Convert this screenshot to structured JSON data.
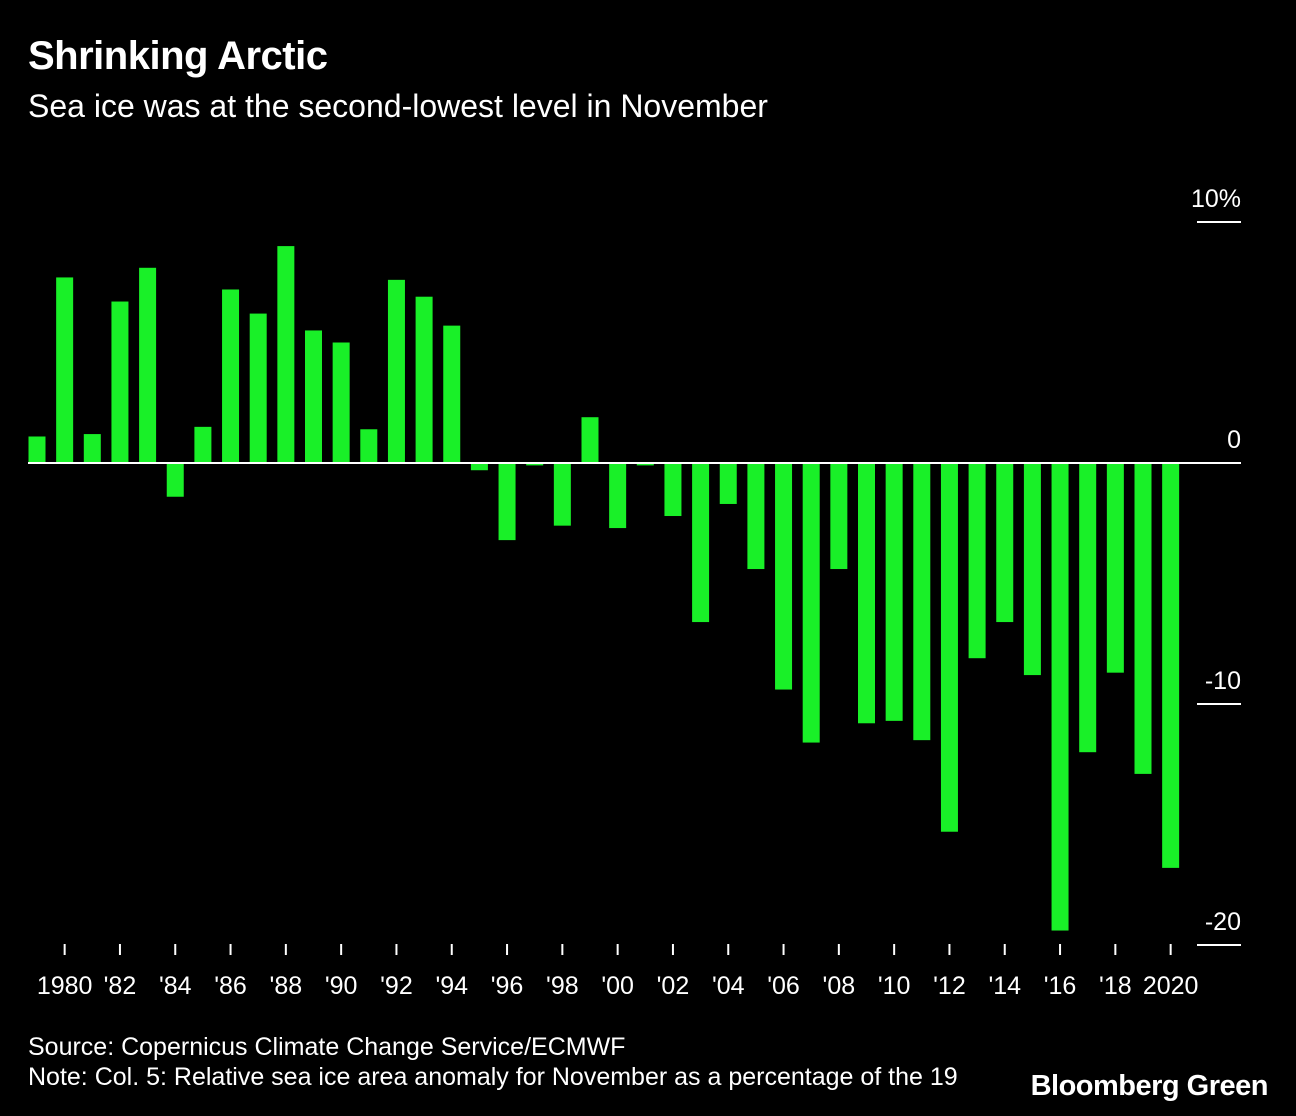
{
  "header": {
    "title": "Shrinking Arctic",
    "subtitle": "Sea ice was at the second-lowest level in November"
  },
  "footer": {
    "source": "Source: Copernicus Climate Change Service/ECMWF",
    "note": "Note: Col. 5: Relative sea ice area anomaly for November as a percentage of the 19",
    "brand": "Bloomberg Green"
  },
  "colors": {
    "background": "#000000",
    "bar": "#19f028",
    "text": "#ffffff",
    "axis": "#ffffff"
  },
  "chart_data": {
    "type": "bar",
    "title": "Shrinking Arctic",
    "subtitle": "Sea ice was at the second-lowest level in November",
    "xlabel": "",
    "ylabel": "",
    "ylim": [
      -20,
      10
    ],
    "y_ticks": [
      {
        "value": 10,
        "label": "10%"
      },
      {
        "value": 0,
        "label": "0"
      },
      {
        "value": -10,
        "label": "-10"
      },
      {
        "value": -20,
        "label": "-20"
      }
    ],
    "categories": [
      1979,
      1980,
      1981,
      1982,
      1983,
      1984,
      1985,
      1986,
      1987,
      1988,
      1989,
      1990,
      1991,
      1992,
      1993,
      1994,
      1995,
      1996,
      1997,
      1998,
      1999,
      2000,
      2001,
      2002,
      2003,
      2004,
      2005,
      2006,
      2007,
      2008,
      2009,
      2010,
      2011,
      2012,
      2013,
      2014,
      2015,
      2016,
      2017,
      2018,
      2019,
      2020
    ],
    "values": [
      1.1,
      7.7,
      1.2,
      6.7,
      8.1,
      -1.4,
      1.5,
      7.2,
      6.2,
      9.0,
      5.5,
      5.0,
      1.4,
      7.6,
      6.9,
      5.7,
      -0.3,
      -3.2,
      -0.1,
      -2.6,
      1.9,
      -2.7,
      -0.1,
      -2.2,
      -6.6,
      -1.7,
      -4.4,
      -9.4,
      -11.6,
      -4.4,
      -10.8,
      -10.7,
      -11.5,
      -15.3,
      -8.1,
      -6.6,
      -8.8,
      -19.4,
      -12.0,
      -8.7,
      -12.9,
      -16.8
    ],
    "x_ticks": [
      {
        "year": 1980,
        "label": "1980"
      },
      {
        "year": 1982,
        "label": "'82"
      },
      {
        "year": 1984,
        "label": "'84"
      },
      {
        "year": 1986,
        "label": "'86"
      },
      {
        "year": 1988,
        "label": "'88"
      },
      {
        "year": 1990,
        "label": "'90"
      },
      {
        "year": 1992,
        "label": "'92"
      },
      {
        "year": 1994,
        "label": "'94"
      },
      {
        "year": 1996,
        "label": "'96"
      },
      {
        "year": 1998,
        "label": "'98"
      },
      {
        "year": 2000,
        "label": "'00"
      },
      {
        "year": 2002,
        "label": "'02"
      },
      {
        "year": 2004,
        "label": "'04"
      },
      {
        "year": 2006,
        "label": "'06"
      },
      {
        "year": 2008,
        "label": "'08"
      },
      {
        "year": 2010,
        "label": "'10"
      },
      {
        "year": 2012,
        "label": "'12"
      },
      {
        "year": 2014,
        "label": "'14"
      },
      {
        "year": 2016,
        "label": "'16"
      },
      {
        "year": 2018,
        "label": "'18"
      },
      {
        "year": 2020,
        "label": "2020"
      }
    ]
  }
}
